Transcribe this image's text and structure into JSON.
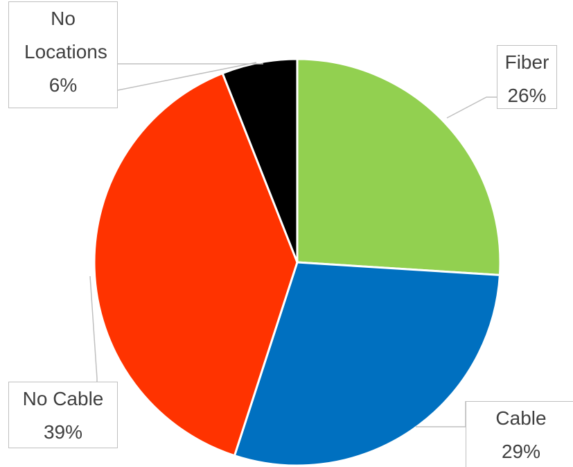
{
  "chart_data": {
    "type": "pie",
    "categories": [
      "Fiber",
      "Cable",
      "No Cable",
      "No Locations"
    ],
    "values": [
      26,
      29,
      39,
      6
    ],
    "value_labels": [
      "26%",
      "29%",
      "39%",
      "6%"
    ],
    "colors": [
      "#92d050",
      "#0070c0",
      "#ff3300",
      "#000000"
    ]
  }
}
